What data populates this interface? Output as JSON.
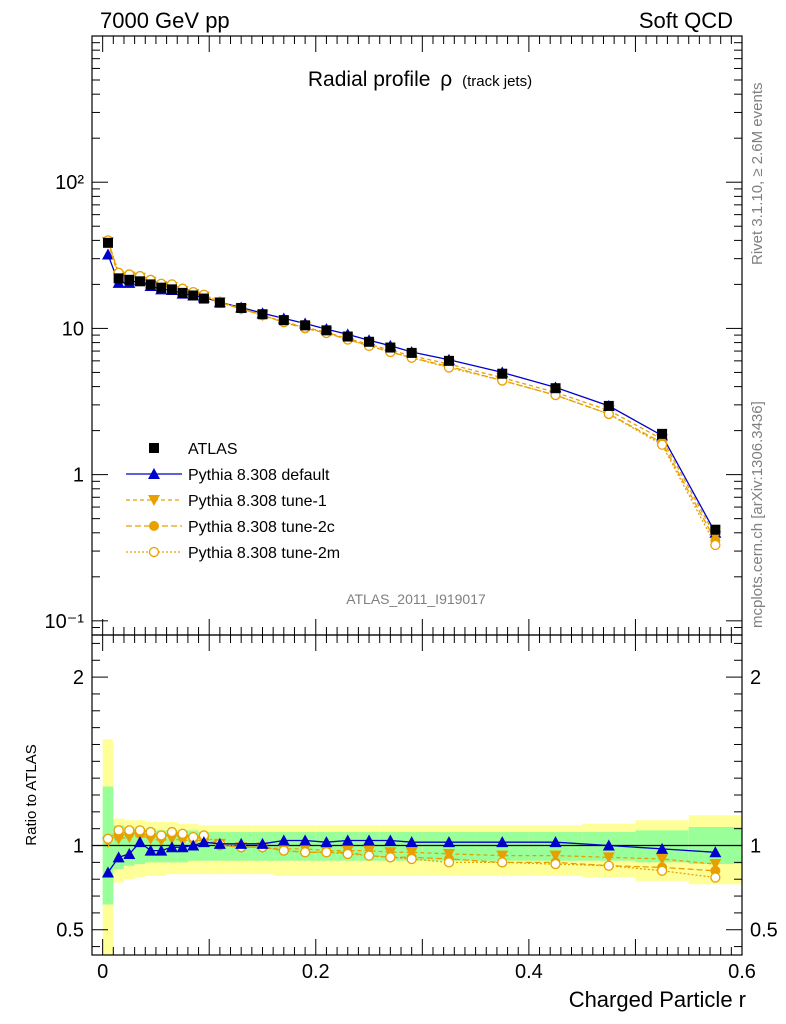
{
  "header": {
    "left": "7000 GeV pp",
    "right": "Soft QCD"
  },
  "side_text": {
    "top": "Rivet 3.1.10, ≥ 2.6M events",
    "bottom": "mcplots.cern.ch [arXiv:1306.3436]"
  },
  "watermark": "ATLAS_2011_I919017",
  "colors": {
    "atlas": "#000000",
    "default": "#0000cc",
    "tune": "#e8a000",
    "band_inner": "#99ff99",
    "band_outer": "#ffff99"
  },
  "chart_data": [
    {
      "type": "line",
      "title": "Radial profile",
      "title_symbol": "ρ",
      "title_note": "(track jets)",
      "yscale": "log",
      "ylim": [
        0.08,
        1000
      ],
      "xlim": [
        -0.01,
        0.6
      ],
      "y_ticks": [
        {
          "value": 0.1,
          "label": "10⁻¹"
        },
        {
          "value": 1,
          "label": "1"
        },
        {
          "value": 10,
          "label": "10"
        },
        {
          "value": 100,
          "label": "10²"
        }
      ],
      "x": [
        0.005,
        0.015,
        0.025,
        0.035,
        0.045,
        0.055,
        0.065,
        0.075,
        0.085,
        0.095,
        0.11,
        0.13,
        0.15,
        0.17,
        0.19,
        0.21,
        0.23,
        0.25,
        0.27,
        0.29,
        0.325,
        0.375,
        0.425,
        0.475,
        0.525,
        0.575
      ],
      "series": [
        {
          "name": "ATLAS",
          "values": [
            38.5,
            22.0,
            21.5,
            21.0,
            20.0,
            19.0,
            18.5,
            17.5,
            16.8,
            16.0,
            15.0,
            13.8,
            12.5,
            11.4,
            10.5,
            9.7,
            8.8,
            8.1,
            7.4,
            6.8,
            6.0,
            4.9,
            3.9,
            2.95,
            1.9,
            0.42
          ]
        },
        {
          "name": "Pythia 8.308 default",
          "values": [
            32.0,
            20.5,
            20.5,
            21.3,
            19.5,
            18.5,
            18.3,
            17.3,
            16.8,
            16.3,
            15.1,
            13.9,
            12.7,
            11.7,
            10.8,
            9.9,
            9.1,
            8.3,
            7.6,
            6.9,
            6.1,
            5.0,
            3.95,
            2.95,
            1.85,
            0.4
          ]
        },
        {
          "name": "Pythia 8.308 tune-1",
          "values": [
            39.0,
            22.5,
            22.6,
            22.2,
            20.8,
            19.5,
            19.2,
            18.0,
            17.2,
            16.5,
            15.1,
            13.6,
            12.3,
            11.1,
            10.2,
            9.4,
            8.5,
            7.8,
            7.1,
            6.5,
            5.7,
            4.6,
            3.65,
            2.75,
            1.75,
            0.38
          ]
        },
        {
          "name": "Pythia 8.308 tune-2c",
          "values": [
            40.0,
            23.3,
            23.0,
            22.5,
            21.2,
            20.0,
            19.8,
            18.5,
            17.5,
            16.8,
            15.0,
            13.6,
            12.3,
            11.0,
            10.0,
            9.3,
            8.4,
            7.6,
            6.9,
            6.3,
            5.5,
            4.4,
            3.5,
            2.6,
            1.65,
            0.355
          ]
        },
        {
          "name": "Pythia 8.308 tune-2m",
          "values": [
            40.0,
            24.0,
            23.4,
            22.8,
            21.5,
            20.2,
            20.0,
            18.7,
            17.7,
            17.0,
            15.2,
            13.7,
            12.4,
            11.1,
            10.1,
            9.3,
            8.4,
            7.6,
            6.9,
            6.3,
            5.4,
            4.4,
            3.5,
            2.6,
            1.6,
            0.33
          ]
        }
      ]
    },
    {
      "type": "line",
      "ylabel": "Ratio to ATLAS",
      "xlabel": "Charged Particle r",
      "ylim": [
        0.35,
        2.25
      ],
      "xlim": [
        -0.01,
        0.6
      ],
      "y_ticks": [
        {
          "value": 0.5,
          "label": "0.5"
        },
        {
          "value": 1,
          "label": "1"
        },
        {
          "value": 2,
          "label": "2"
        }
      ],
      "x_ticks": [
        {
          "value": 0,
          "label": "0"
        },
        {
          "value": 0.2,
          "label": "0.2"
        },
        {
          "value": 0.4,
          "label": "0.4"
        },
        {
          "value": 0.6,
          "label": "0.6"
        }
      ],
      "bin_edges": [
        0,
        0.01,
        0.02,
        0.03,
        0.04,
        0.05,
        0.06,
        0.07,
        0.08,
        0.09,
        0.1,
        0.12,
        0.14,
        0.16,
        0.18,
        0.2,
        0.22,
        0.24,
        0.26,
        0.28,
        0.3,
        0.35,
        0.4,
        0.45,
        0.5,
        0.55,
        0.6
      ],
      "band_inner": {
        "low": [
          0.65,
          0.86,
          0.88,
          0.89,
          0.9,
          0.9,
          0.9,
          0.9,
          0.91,
          0.91,
          0.91,
          0.91,
          0.91,
          0.91,
          0.91,
          0.91,
          0.91,
          0.91,
          0.91,
          0.91,
          0.91,
          0.91,
          0.91,
          0.91,
          0.9,
          0.89
        ],
        "high": [
          1.35,
          1.12,
          1.11,
          1.1,
          1.1,
          1.09,
          1.09,
          1.09,
          1.09,
          1.08,
          1.08,
          1.08,
          1.08,
          1.08,
          1.08,
          1.08,
          1.08,
          1.08,
          1.08,
          1.08,
          1.08,
          1.08,
          1.08,
          1.08,
          1.09,
          1.11
        ]
      },
      "band_outer": {
        "low": [
          0.35,
          0.78,
          0.8,
          0.81,
          0.82,
          0.82,
          0.83,
          0.83,
          0.83,
          0.83,
          0.83,
          0.83,
          0.83,
          0.82,
          0.82,
          0.82,
          0.82,
          0.82,
          0.82,
          0.82,
          0.82,
          0.82,
          0.82,
          0.81,
          0.79,
          0.77
        ],
        "high": [
          1.63,
          1.16,
          1.15,
          1.15,
          1.14,
          1.14,
          1.14,
          1.13,
          1.13,
          1.12,
          1.12,
          1.12,
          1.12,
          1.12,
          1.12,
          1.12,
          1.12,
          1.12,
          1.12,
          1.12,
          1.12,
          1.12,
          1.12,
          1.13,
          1.15,
          1.18
        ]
      },
      "x": [
        0.005,
        0.015,
        0.025,
        0.035,
        0.045,
        0.055,
        0.065,
        0.075,
        0.085,
        0.095,
        0.11,
        0.13,
        0.15,
        0.17,
        0.19,
        0.21,
        0.23,
        0.25,
        0.27,
        0.29,
        0.325,
        0.375,
        0.425,
        0.475,
        0.525,
        0.575
      ],
      "series": [
        {
          "name": "Pythia 8.308 default",
          "values": [
            0.84,
            0.93,
            0.95,
            1.02,
            0.97,
            0.97,
            0.99,
            0.99,
            1.0,
            1.02,
            1.01,
            1.01,
            1.01,
            1.03,
            1.03,
            1.02,
            1.03,
            1.03,
            1.03,
            1.02,
            1.02,
            1.02,
            1.02,
            1.0,
            0.98,
            0.96
          ]
        },
        {
          "name": "Pythia 8.308 tune-1",
          "values": [
            1.02,
            1.04,
            1.05,
            1.06,
            1.04,
            1.03,
            1.04,
            1.03,
            1.03,
            1.03,
            1.01,
            0.99,
            0.99,
            0.98,
            0.98,
            0.97,
            0.97,
            0.97,
            0.96,
            0.96,
            0.95,
            0.94,
            0.94,
            0.93,
            0.92,
            0.89
          ]
        },
        {
          "name": "Pythia 8.308 tune-2c",
          "values": [
            1.04,
            1.06,
            1.07,
            1.07,
            1.06,
            1.05,
            1.07,
            1.06,
            1.04,
            1.05,
            1.0,
            0.99,
            0.99,
            0.97,
            0.96,
            0.96,
            0.96,
            0.94,
            0.93,
            0.93,
            0.92,
            0.9,
            0.9,
            0.88,
            0.87,
            0.85
          ]
        },
        {
          "name": "Pythia 8.308 tune-2m",
          "values": [
            1.04,
            1.09,
            1.09,
            1.09,
            1.08,
            1.06,
            1.08,
            1.07,
            1.05,
            1.06,
            1.01,
            0.99,
            0.99,
            0.97,
            0.96,
            0.96,
            0.95,
            0.94,
            0.93,
            0.92,
            0.9,
            0.9,
            0.89,
            0.88,
            0.85,
            0.81
          ]
        }
      ]
    }
  ]
}
